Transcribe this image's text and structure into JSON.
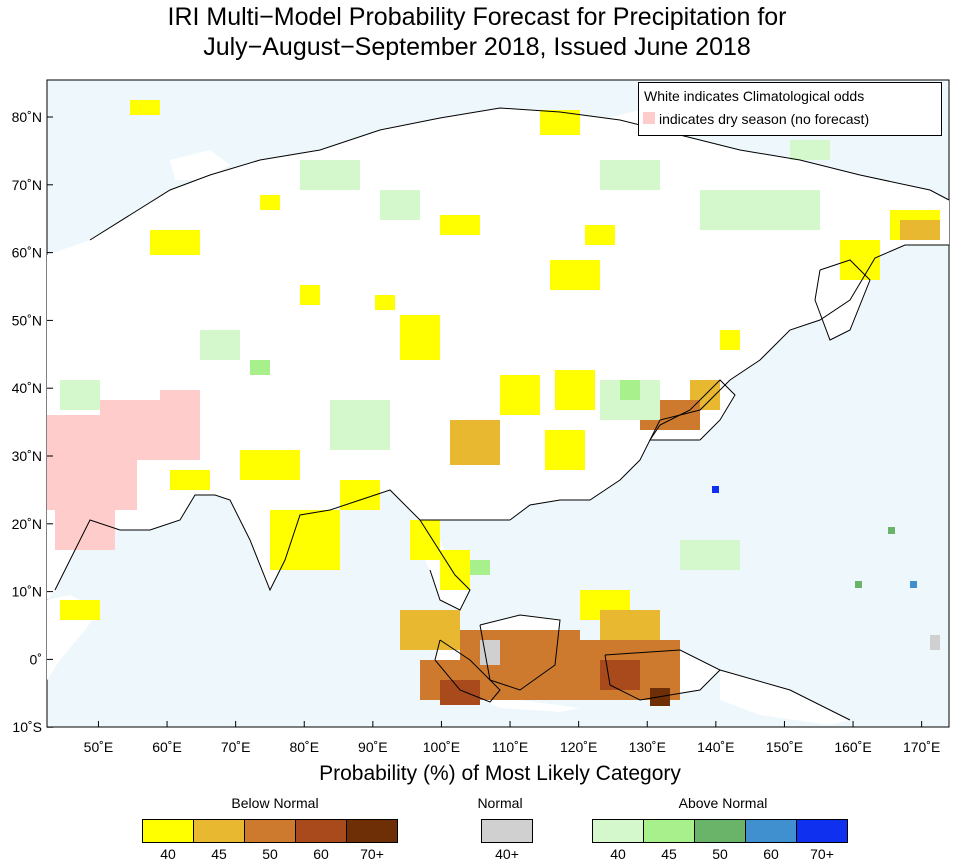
{
  "title": {
    "line1": "IRI Multi−Model Probability Forecast for Precipitation for",
    "line2": "July−August−September 2018, Issued June 2018"
  },
  "map": {
    "ocean_color": "#eef7fc",
    "land_color": "#ffffff",
    "lat_ticks": [
      "80˚N",
      "70˚N",
      "60˚N",
      "50˚N",
      "40˚N",
      "30˚N",
      "20˚N",
      "10˚N",
      "0˚",
      "10˚S"
    ],
    "lon_ticks": [
      "50˚E",
      "60˚E",
      "70˚E",
      "80˚E",
      "90˚E",
      "100˚E",
      "110˚E",
      "120˚E",
      "130˚E",
      "140˚E",
      "150˚E",
      "160˚E",
      "170˚E"
    ],
    "lat_values": [
      80,
      70,
      60,
      50,
      40,
      30,
      20,
      10,
      0,
      -10
    ],
    "lon_values": [
      50,
      60,
      70,
      80,
      90,
      100,
      110,
      120,
      130,
      140,
      150,
      160,
      170
    ]
  },
  "legend": {
    "line1": "White indicates Climatological odds",
    "line2": "indicates dry season (no forecast)",
    "dry_color": "#ffcccc"
  },
  "colorbar": {
    "title": "Probability (%) of Most Likely Category",
    "below_normal": {
      "label": "Below Normal",
      "colors": [
        "#ffff00",
        "#e8b830",
        "#cd7a2e",
        "#a84a1c",
        "#6e2e06"
      ],
      "ticks": [
        "40",
        "45",
        "50",
        "60",
        "70+"
      ]
    },
    "normal": {
      "label": "Normal",
      "colors": [
        "#d0d0d0"
      ],
      "ticks": [
        "40+"
      ]
    },
    "above_normal": {
      "label": "Above Normal",
      "colors": [
        "#d4f7cc",
        "#a8f08c",
        "#6ab46a",
        "#4090d0",
        "#1030f0"
      ],
      "ticks": [
        "40",
        "45",
        "50",
        "60",
        "70+"
      ]
    }
  }
}
